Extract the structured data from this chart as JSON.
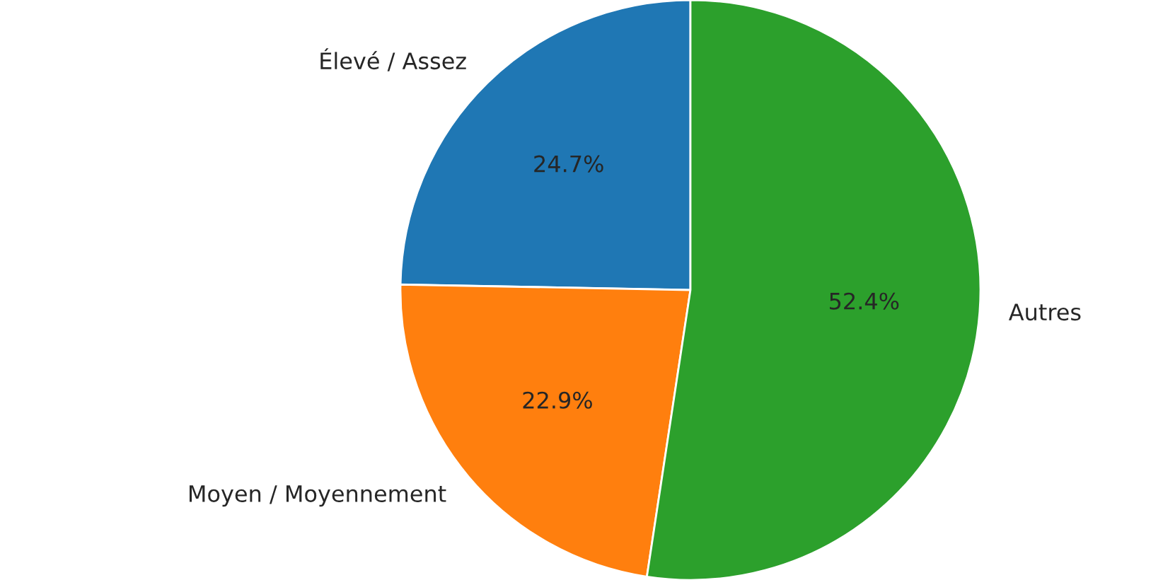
{
  "chart_data": {
    "type": "pie",
    "categories": [
      "Élevé / Assez",
      "Moyen / Moyennement",
      "Autres"
    ],
    "values": [
      24.7,
      22.9,
      52.4
    ],
    "value_labels": [
      "24.7%",
      "22.9%",
      "52.4%"
    ],
    "colors": [
      "#1f77b4",
      "#ff7f0e",
      "#2ca02c"
    ]
  }
}
